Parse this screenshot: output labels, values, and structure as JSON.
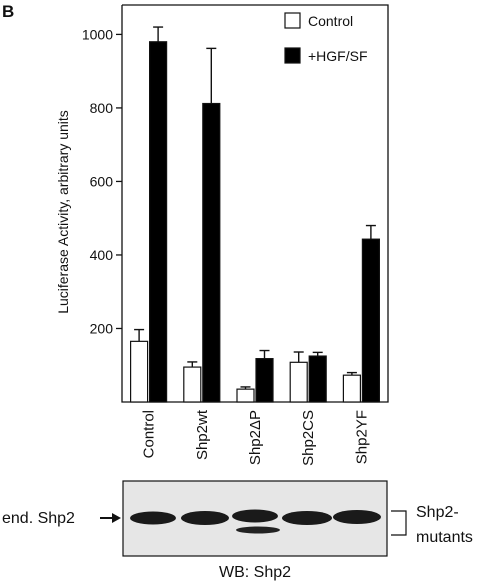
{
  "panel_label": "B",
  "chart_data": {
    "type": "bar",
    "ylabel": "Luciferase Activity, arbitrary units",
    "ylim": [
      0,
      1080
    ],
    "yticks": [
      200,
      400,
      600,
      800,
      1000
    ],
    "categories": [
      "Control",
      "Shp2wt",
      "Shp2ΔP",
      "Shp2CS",
      "Shp2YF"
    ],
    "series": [
      {
        "name": "Control",
        "color": "#ffffff",
        "values": [
          165,
          95,
          35,
          108,
          73
        ],
        "errors": [
          32,
          14,
          6,
          28,
          7
        ]
      },
      {
        "name": "+HGF/SF",
        "color": "#000000",
        "values": [
          980,
          812,
          118,
          125,
          443
        ],
        "errors": [
          40,
          150,
          22,
          10,
          37
        ]
      }
    ],
    "legend_position": "top-right",
    "grid": false
  },
  "western_blot": {
    "caption": "WB: Shp2",
    "left_label": "end. Shp2",
    "right_label_line1": "Shp2-",
    "right_label_line2": "mutants"
  }
}
